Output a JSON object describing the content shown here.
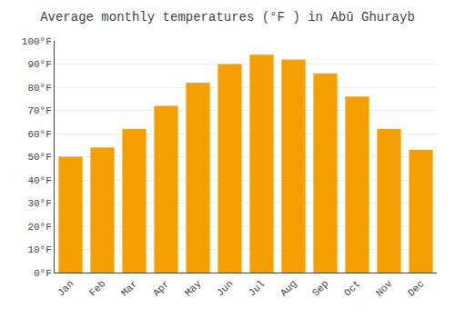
{
  "chart_data": {
    "type": "bar",
    "title": "Average monthly temperatures (°F ) in Abū Ghurayb",
    "categories": [
      "Jan",
      "Feb",
      "Mar",
      "Apr",
      "May",
      "Jun",
      "Jul",
      "Aug",
      "Sep",
      "Oct",
      "Nov",
      "Dec"
    ],
    "values": [
      50,
      54,
      62,
      72,
      82,
      90,
      94,
      92,
      86,
      76,
      62,
      53
    ],
    "color": "#F5A000",
    "ylim": [
      0,
      100
    ],
    "yticks": [
      {
        "value": 0,
        "label": "0°F"
      },
      {
        "value": 10,
        "label": "10°F"
      },
      {
        "value": 20,
        "label": "20°F"
      },
      {
        "value": 30,
        "label": "30°F"
      },
      {
        "value": 40,
        "label": "40°F"
      },
      {
        "value": 50,
        "label": "50°F"
      },
      {
        "value": 60,
        "label": "60°F"
      },
      {
        "value": 70,
        "label": "70°F"
      },
      {
        "value": 80,
        "label": "80°F"
      },
      {
        "value": 90,
        "label": "90°F"
      },
      {
        "value": 100,
        "label": "100°F"
      }
    ],
    "grid": true
  }
}
